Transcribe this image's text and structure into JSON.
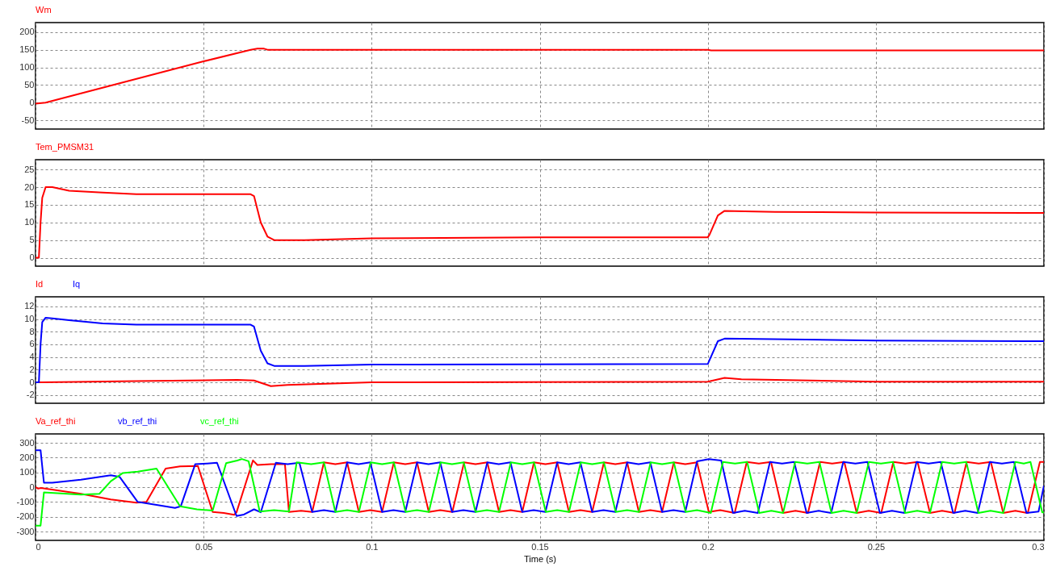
{
  "chart_data": [
    {
      "type": "line",
      "legend": "top left",
      "grid": true,
      "tick_labels": "y",
      "xlim": [
        0,
        0.3
      ],
      "xticks": [
        0,
        0.05,
        0.1,
        0.15,
        0.2,
        0.25,
        0.3
      ],
      "ylim": [
        -75,
        227
      ],
      "yticks": [
        -50,
        0,
        50,
        100,
        150,
        200
      ],
      "series": [
        {
          "name": "Wm",
          "color": "#ff0000",
          "x": [
            0,
            0.003,
            0.05,
            0.064,
            0.066,
            0.068,
            0.069,
            0.2,
            0.201,
            0.3
          ],
          "values": [
            -3,
            0,
            117,
            150,
            153,
            153,
            150,
            150,
            148,
            148
          ]
        }
      ]
    },
    {
      "type": "line",
      "legend": "top left",
      "grid": true,
      "tick_labels": "y",
      "xlim": [
        0,
        0.3
      ],
      "xticks": [
        0,
        0.05,
        0.1,
        0.15,
        0.2,
        0.25,
        0.3
      ],
      "ylim": [
        -2.4,
        27.8
      ],
      "yticks": [
        0,
        5,
        10,
        15,
        20,
        25
      ],
      "series": [
        {
          "name": "Tem_PMSM31",
          "color": "#ff0000",
          "x": [
            0,
            0.001,
            0.0015,
            0.002,
            0.003,
            0.005,
            0.01,
            0.02,
            0.03,
            0.064,
            0.065,
            0.067,
            0.069,
            0.071,
            0.08,
            0.1,
            0.15,
            0.2,
            0.2005,
            0.203,
            0.205,
            0.22,
            0.25,
            0.3
          ],
          "values": [
            0,
            0,
            10,
            17,
            20,
            20,
            19,
            18.5,
            18,
            18,
            17.5,
            10,
            6,
            5,
            5,
            5.5,
            5.8,
            5.8,
            6.5,
            12,
            13.3,
            13,
            12.8,
            12.7
          ]
        }
      ]
    },
    {
      "type": "line",
      "legend": "top left",
      "grid": true,
      "tick_labels": "y",
      "xlim": [
        0,
        0.3
      ],
      "xticks": [
        0,
        0.05,
        0.1,
        0.15,
        0.2,
        0.25,
        0.3
      ],
      "ylim": [
        -3.3,
        13.5
      ],
      "yticks": [
        -2,
        0,
        2,
        4,
        6,
        8,
        10,
        12
      ],
      "series": [
        {
          "name": "Id",
          "color": "#ff0000",
          "x": [
            0,
            0.002,
            0.03,
            0.06,
            0.065,
            0.07,
            0.075,
            0.1,
            0.2,
            0.205,
            0.21,
            0.25,
            0.3
          ],
          "values": [
            0,
            0,
            0.2,
            0.4,
            0.3,
            -0.6,
            -0.4,
            0,
            0.1,
            0.7,
            0.5,
            0.1,
            0.1
          ]
        },
        {
          "name": "Iq",
          "color": "#0000ff",
          "x": [
            0,
            0.001,
            0.0015,
            0.002,
            0.003,
            0.005,
            0.01,
            0.02,
            0.03,
            0.064,
            0.065,
            0.067,
            0.069,
            0.071,
            0.08,
            0.1,
            0.2,
            0.2005,
            0.203,
            0.205,
            0.25,
            0.3
          ],
          "values": [
            0,
            0,
            6,
            9.5,
            10.2,
            10.1,
            9.8,
            9.3,
            9.1,
            9.1,
            8.8,
            5,
            3,
            2.6,
            2.6,
            2.8,
            2.9,
            3.5,
            6.5,
            6.9,
            6.6,
            6.5
          ]
        }
      ]
    },
    {
      "type": "line",
      "legend": "top left",
      "grid": true,
      "xlabel": "Time (s)",
      "xlim": [
        0,
        0.3
      ],
      "xticks": [
        0,
        0.05,
        0.1,
        0.15,
        0.2,
        0.25,
        0.3
      ],
      "ylim": [
        -360,
        360
      ],
      "yticks": [
        -300,
        -200,
        -100,
        0,
        100,
        200,
        300
      ],
      "series": [
        {
          "name": "Va_ref_thi",
          "color": "#ff0000",
          "x": [
            0,
            0.0008,
            0.0016,
            0.0135,
            0.0224,
            0.03,
            0.033,
            0.0387,
            0.043,
            0.0483,
            0.0527,
            0.056,
            0.0591,
            0.0598,
            0.0647,
            0.066,
            0.07,
            0.0742,
            0.0754,
            0.079,
            0.0823,
            0.0858,
            0.0892,
            0.0927,
            0.0962,
            0.0996,
            0.1031,
            0.1066,
            0.11,
            0.1135,
            0.117,
            0.1204,
            0.124,
            0.1275,
            0.1309,
            0.1344,
            0.1379,
            0.1413,
            0.1448,
            0.1483,
            0.1517,
            0.1552,
            0.1587,
            0.1621,
            0.1656,
            0.1691,
            0.1725,
            0.176,
            0.1795,
            0.1829,
            0.1864,
            0.1899,
            0.1933,
            0.1968,
            0.2003,
            0.2037,
            0.208,
            0.2116,
            0.2152,
            0.2188,
            0.2224,
            0.2261,
            0.2298,
            0.2334,
            0.237,
            0.2406,
            0.2443,
            0.2479,
            0.2516,
            0.2552,
            0.2588,
            0.2624,
            0.2661,
            0.2697,
            0.2734,
            0.277,
            0.2806,
            0.2842,
            0.2879,
            0.2915,
            0.2952,
            0.2988,
            0.3
          ],
          "values": [
            0,
            -10,
            -5,
            -45,
            -83,
            -105,
            -100,
            125,
            140,
            143,
            -168,
            -175,
            -187,
            -170,
            181,
            150,
            155,
            155,
            -168,
            -160,
            -168,
            168,
            155,
            168,
            -168,
            -155,
            -168,
            168,
            155,
            168,
            -168,
            -155,
            -168,
            168,
            155,
            168,
            -168,
            -155,
            -168,
            168,
            155,
            168,
            -168,
            -155,
            -168,
            168,
            155,
            168,
            -168,
            -155,
            -168,
            168,
            155,
            168,
            -168,
            -155,
            -175,
            170,
            160,
            170,
            -175,
            -160,
            -175,
            170,
            160,
            170,
            -175,
            -160,
            -175,
            170,
            160,
            170,
            -175,
            -160,
            -175,
            170,
            160,
            170,
            -175,
            -160,
            -175,
            170,
            170
          ]
        },
        {
          "name": "vb_ref_thi",
          "color": "#0000ff",
          "x": [
            0,
            0.0015,
            0.0025,
            0.005,
            0.0135,
            0.0224,
            0.025,
            0.0304,
            0.036,
            0.0415,
            0.0432,
            0.0475,
            0.051,
            0.054,
            0.0598,
            0.062,
            0.065,
            0.067,
            0.0715,
            0.075,
            0.0785,
            0.0823,
            0.0858,
            0.0892,
            0.0927,
            0.0961,
            0.0996,
            0.1031,
            0.1065,
            0.11,
            0.1135,
            0.1169,
            0.1204,
            0.1239,
            0.1273,
            0.1309,
            0.1344,
            0.1378,
            0.1413,
            0.1448,
            0.1482,
            0.1517,
            0.1552,
            0.1586,
            0.1621,
            0.1656,
            0.169,
            0.1725,
            0.176,
            0.1794,
            0.1829,
            0.1864,
            0.1898,
            0.1933,
            0.1968,
            0.2003,
            0.204,
            0.2075,
            0.211,
            0.2149,
            0.2185,
            0.2221,
            0.2257,
            0.2294,
            0.233,
            0.2367,
            0.2403,
            0.2439,
            0.2475,
            0.2512,
            0.2548,
            0.2585,
            0.2621,
            0.2657,
            0.2693,
            0.273,
            0.2766,
            0.2803,
            0.2839,
            0.2875,
            0.2911,
            0.2948,
            0.2984,
            0.3
          ],
          "values": [
            250,
            250,
            30,
            30,
            50,
            80,
            70,
            -100,
            -120,
            -140,
            -130,
            155,
            160,
            165,
            -195,
            -185,
            -150,
            -170,
            165,
            155,
            165,
            -168,
            -155,
            -168,
            168,
            155,
            168,
            -168,
            -155,
            -168,
            168,
            155,
            168,
            -168,
            -155,
            -168,
            168,
            155,
            168,
            -168,
            -155,
            -168,
            168,
            155,
            168,
            -168,
            -155,
            -168,
            168,
            155,
            168,
            -168,
            -155,
            -168,
            175,
            190,
            180,
            -175,
            -160,
            -175,
            170,
            160,
            170,
            -175,
            -160,
            -175,
            170,
            160,
            170,
            -175,
            -160,
            -175,
            170,
            160,
            170,
            -175,
            -160,
            -175,
            170,
            160,
            170,
            -175,
            -165,
            10
          ]
        },
        {
          "name": "vc_ref_thi",
          "color": "#00ff00",
          "x": [
            0,
            0.0015,
            0.0025,
            0.0135,
            0.019,
            0.0224,
            0.026,
            0.0304,
            0.036,
            0.043,
            0.048,
            0.0527,
            0.0567,
            0.06,
            0.0614,
            0.0634,
            0.0667,
            0.071,
            0.0754,
            0.0777,
            0.082,
            0.0858,
            0.0892,
            0.0927,
            0.0962,
            0.0997,
            0.1031,
            0.1066,
            0.1101,
            0.1135,
            0.117,
            0.1205,
            0.1239,
            0.1274,
            0.1309,
            0.1343,
            0.1379,
            0.1414,
            0.1448,
            0.1483,
            0.1518,
            0.1552,
            0.1587,
            0.1622,
            0.1656,
            0.1691,
            0.1726,
            0.176,
            0.1795,
            0.183,
            0.1864,
            0.1899,
            0.1934,
            0.1968,
            0.2009,
            0.2045,
            0.2081,
            0.2117,
            0.2153,
            0.2189,
            0.2224,
            0.226,
            0.2296,
            0.2332,
            0.2368,
            0.2404,
            0.2443,
            0.2479,
            0.2515,
            0.2551,
            0.2587,
            0.2623,
            0.2661,
            0.2697,
            0.2733,
            0.2769,
            0.2805,
            0.2841,
            0.2879,
            0.2915,
            0.294,
            0.296,
            0.2995,
            0.3
          ],
          "values": [
            -260,
            -260,
            -35,
            -50,
            -45,
            40,
            96,
            105,
            125,
            -130,
            -150,
            -158,
            162,
            180,
            190,
            175,
            -165,
            -155,
            -165,
            168,
            155,
            168,
            -168,
            -155,
            -168,
            168,
            155,
            168,
            -168,
            -155,
            -168,
            168,
            155,
            168,
            -168,
            -155,
            -168,
            168,
            155,
            168,
            -168,
            -155,
            -168,
            168,
            155,
            168,
            -168,
            -155,
            -168,
            168,
            155,
            168,
            -168,
            -155,
            -175,
            170,
            160,
            170,
            -175,
            -160,
            -175,
            170,
            160,
            170,
            -175,
            -160,
            -175,
            170,
            160,
            170,
            -175,
            -160,
            -175,
            170,
            160,
            170,
            -175,
            -160,
            -175,
            170,
            160,
            170,
            -170,
            -170
          ]
        }
      ]
    }
  ]
}
